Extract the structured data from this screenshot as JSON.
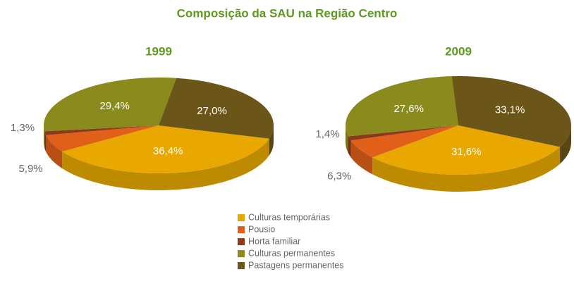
{
  "title": "Composição da SAU na Região Centro",
  "chart_data": [
    {
      "type": "pie",
      "title": "1999",
      "categories": [
        "Culturas temporárias",
        "Pousio",
        "Horta familiar",
        "Culturas permanentes",
        "Pastagens permanentes"
      ],
      "values": [
        36.4,
        5.9,
        1.3,
        29.4,
        27.0
      ],
      "value_labels": [
        "36,4%",
        "5,9%",
        "1,3%",
        "29,4%",
        "27,0%"
      ],
      "colors": [
        "#e8a800",
        "#e0601a",
        "#8b3a1a",
        "#8b8a1c",
        "#6b5518"
      ]
    },
    {
      "type": "pie",
      "title": "2009",
      "categories": [
        "Culturas temporárias",
        "Pousio",
        "Horta familiar",
        "Culturas permanentes",
        "Pastagens permanentes"
      ],
      "values": [
        31.6,
        6.3,
        1.4,
        27.6,
        33.1
      ],
      "value_labels": [
        "31,6%",
        "6,3%",
        "1,4%",
        "27,6%",
        "33,1%"
      ],
      "colors": [
        "#e8a800",
        "#e0601a",
        "#8b3a1a",
        "#8b8a1c",
        "#6b5518"
      ]
    }
  ]
}
